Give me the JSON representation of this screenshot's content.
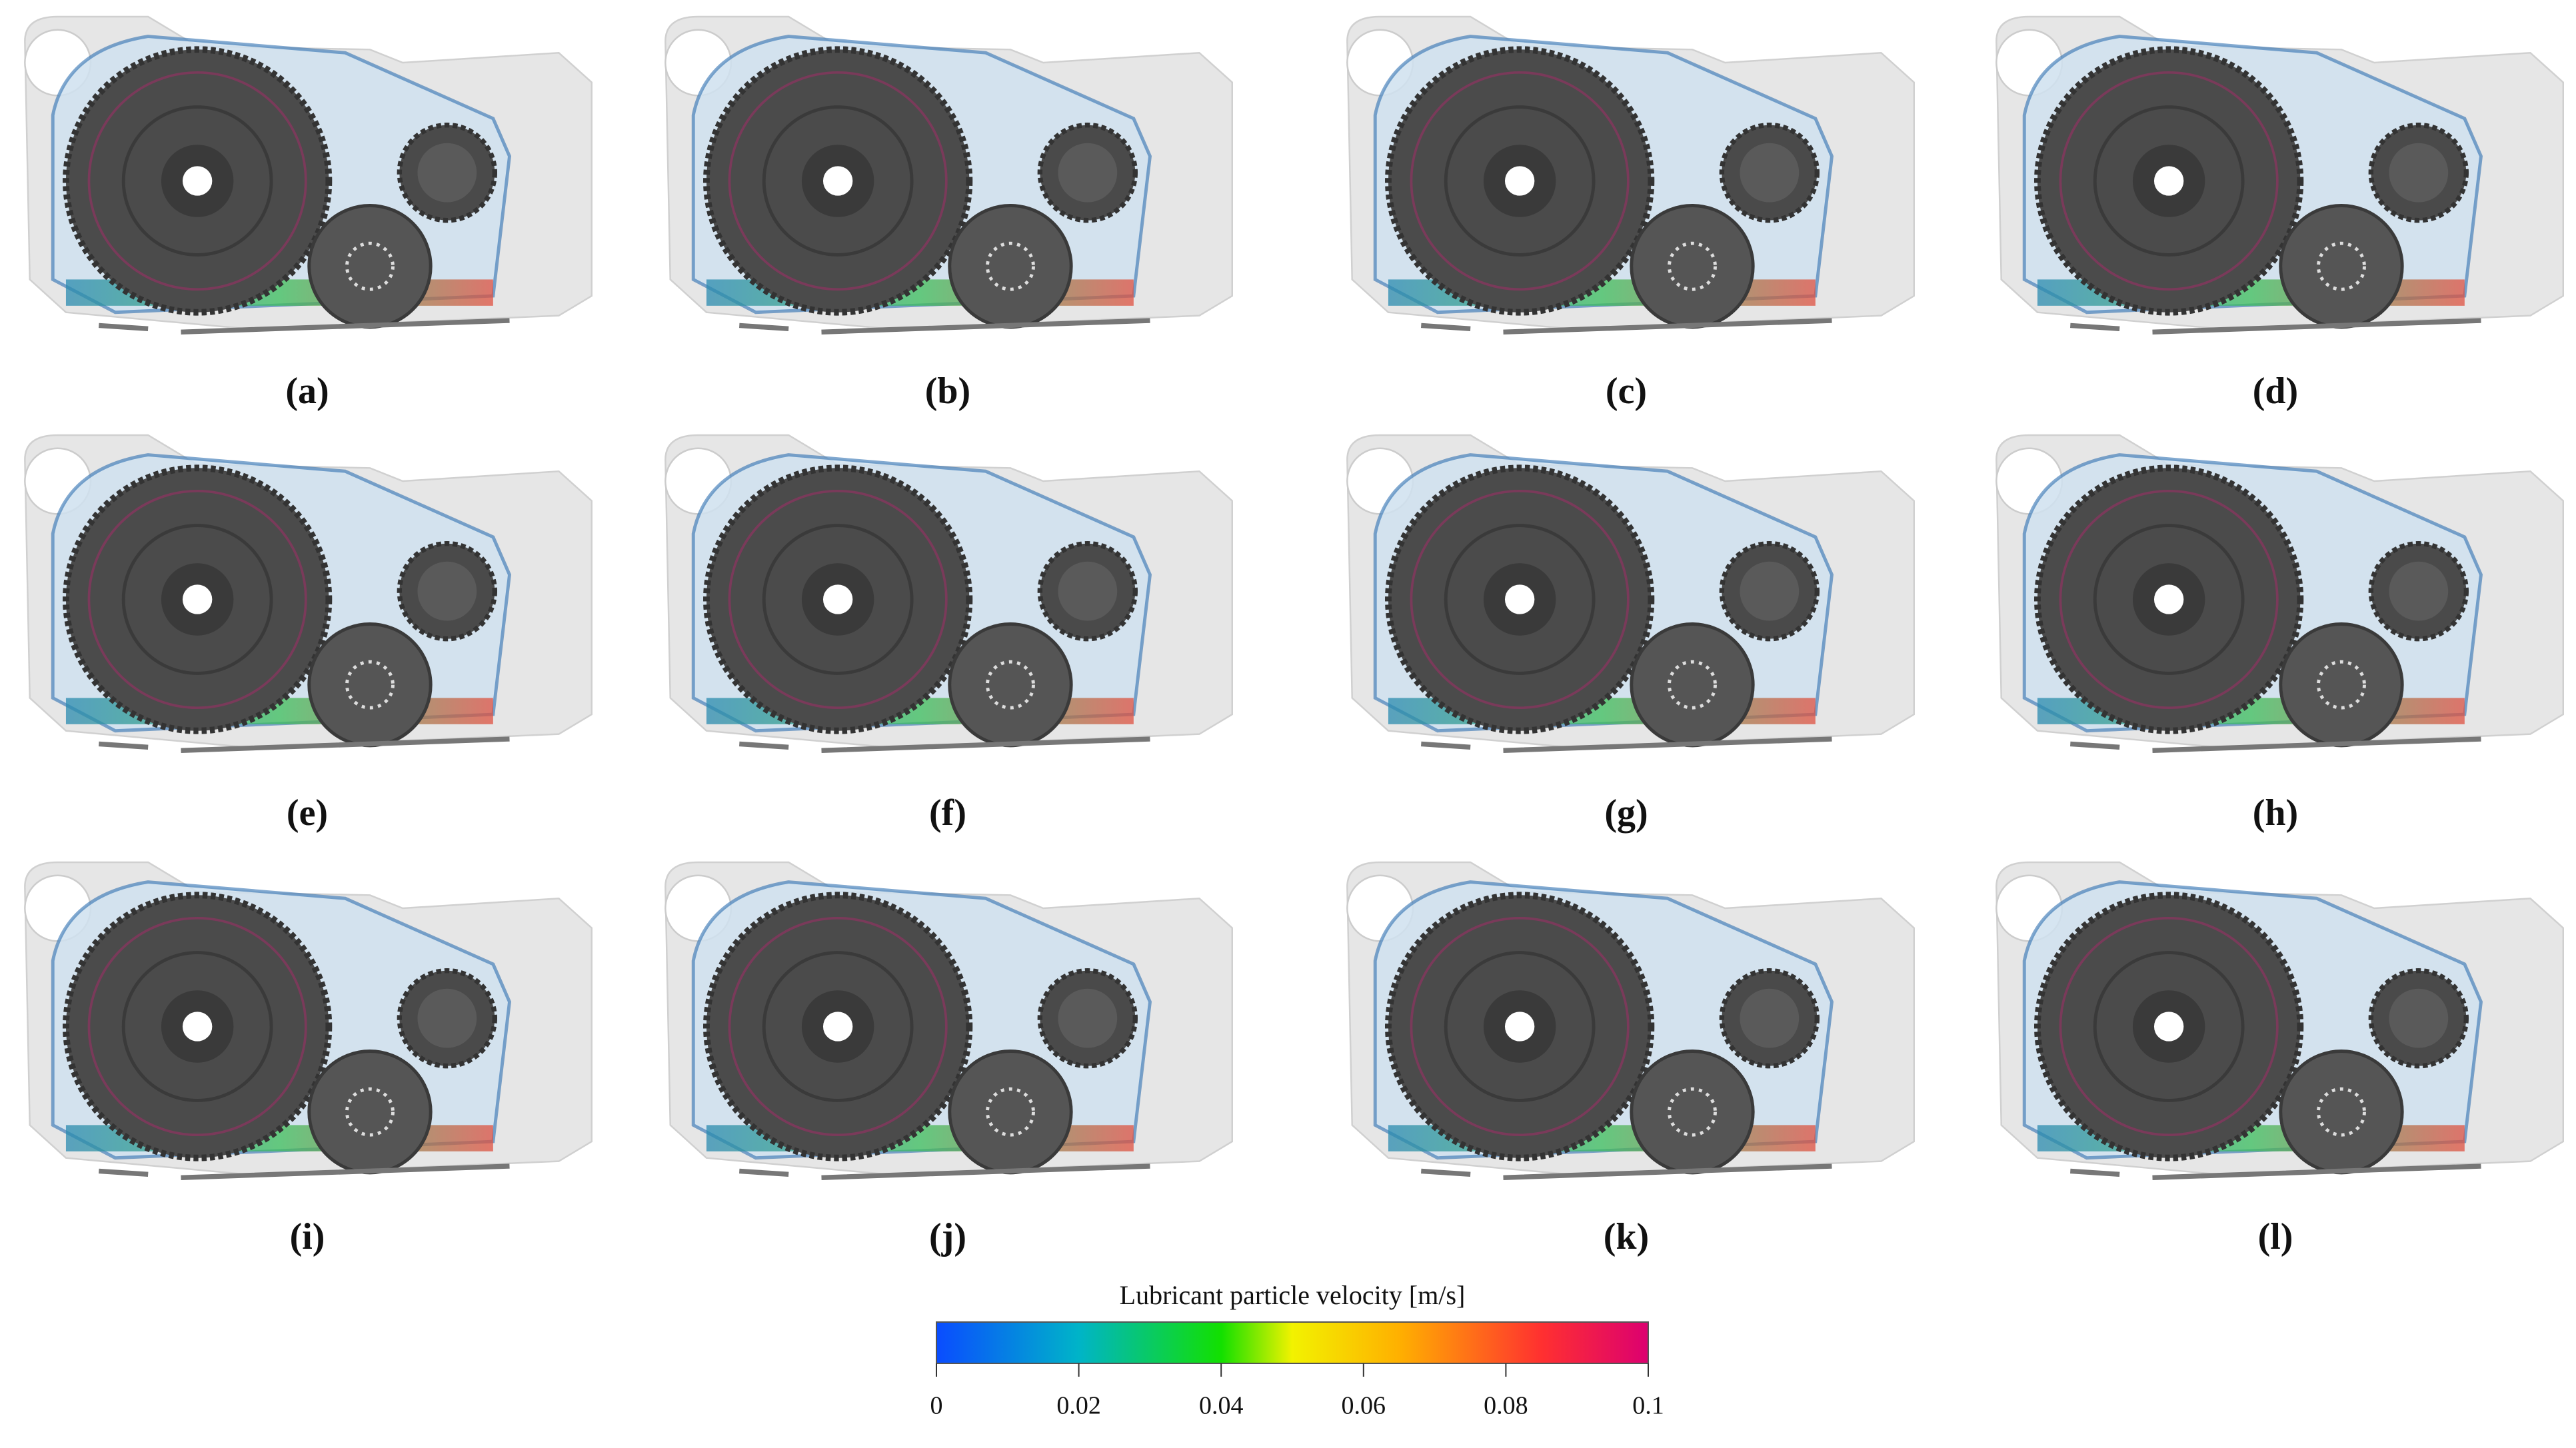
{
  "panels": [
    {
      "label": "(a)"
    },
    {
      "label": "(b)"
    },
    {
      "label": "(c)"
    },
    {
      "label": "(d)"
    },
    {
      "label": "(e)"
    },
    {
      "label": "(f)"
    },
    {
      "label": "(g)"
    },
    {
      "label": "(h)"
    },
    {
      "label": "(i)"
    },
    {
      "label": "(j)"
    },
    {
      "label": "(k)"
    },
    {
      "label": "(l)"
    }
  ],
  "colorbar": {
    "title": "Lubricant particle velocity [m/s]",
    "range": [
      0,
      0.1
    ],
    "ticks": [
      0,
      0.02,
      0.04,
      0.06,
      0.08,
      0.1
    ]
  }
}
